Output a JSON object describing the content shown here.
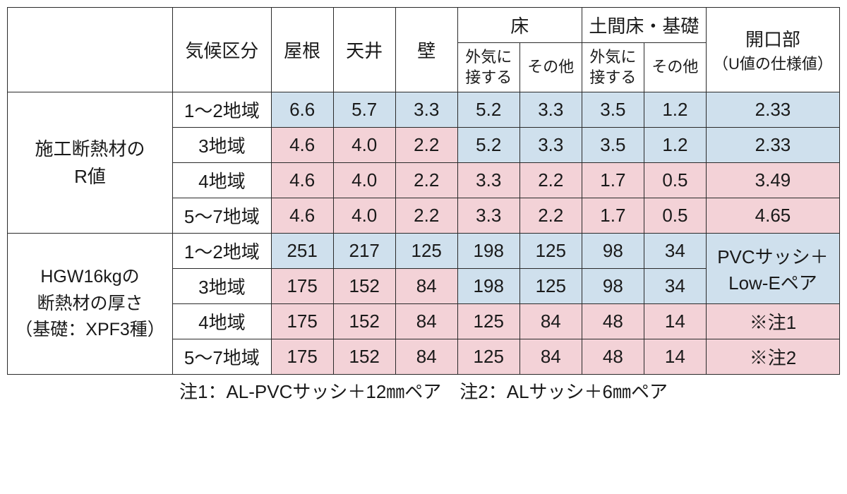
{
  "colors": {
    "blue": "#cfe0ed",
    "pink": "#f3d2d7",
    "border": "#2a2a2a",
    "bg": "#ffffff",
    "text": "#1a1a1a"
  },
  "typography": {
    "base_fontsize": 26,
    "sub_fontsize": 22,
    "family": "Hiragino Sans / Meiryo"
  },
  "header": {
    "climate": "気候区分",
    "roof": "屋根",
    "ceiling": "天井",
    "wall": "壁",
    "floor": "床",
    "floor_outside": "外気に\n接する",
    "floor_other": "その他",
    "doma": "土間床・基礎",
    "doma_outside": "外気に\n接する",
    "doma_other": "その他",
    "opening": "開口部",
    "opening_sub": "（U値の仕様値）"
  },
  "rowgroup1": {
    "label_l1": "施工断熱材の",
    "label_l2": "R値",
    "rows": [
      {
        "climate": "1〜2地域",
        "roof": "6.6",
        "ceiling": "5.7",
        "wall": "3.3",
        "f_out": "5.2",
        "f_oth": "3.3",
        "d_out": "3.5",
        "d_oth": "1.2",
        "open": "2.33",
        "c": {
          "roof": "blue",
          "ceiling": "blue",
          "wall": "blue",
          "f_out": "blue",
          "f_oth": "blue",
          "d_out": "blue",
          "d_oth": "blue",
          "open": "blue"
        }
      },
      {
        "climate": "3地域",
        "roof": "4.6",
        "ceiling": "4.0",
        "wall": "2.2",
        "f_out": "5.2",
        "f_oth": "3.3",
        "d_out": "3.5",
        "d_oth": "1.2",
        "open": "2.33",
        "c": {
          "roof": "pink",
          "ceiling": "pink",
          "wall": "pink",
          "f_out": "blue",
          "f_oth": "blue",
          "d_out": "blue",
          "d_oth": "blue",
          "open": "blue"
        }
      },
      {
        "climate": "4地域",
        "roof": "4.6",
        "ceiling": "4.0",
        "wall": "2.2",
        "f_out": "3.3",
        "f_oth": "2.2",
        "d_out": "1.7",
        "d_oth": "0.5",
        "open": "3.49",
        "c": {
          "roof": "pink",
          "ceiling": "pink",
          "wall": "pink",
          "f_out": "pink",
          "f_oth": "pink",
          "d_out": "pink",
          "d_oth": "pink",
          "open": "pink"
        }
      },
      {
        "climate": "5〜7地域",
        "roof": "4.6",
        "ceiling": "4.0",
        "wall": "2.2",
        "f_out": "3.3",
        "f_oth": "2.2",
        "d_out": "1.7",
        "d_oth": "0.5",
        "open": "4.65",
        "c": {
          "roof": "pink",
          "ceiling": "pink",
          "wall": "pink",
          "f_out": "pink",
          "f_oth": "pink",
          "d_out": "pink",
          "d_oth": "pink",
          "open": "pink"
        }
      }
    ]
  },
  "rowgroup2": {
    "label_l1": "HGW16kgの",
    "label_l2": "断熱材の厚さ",
    "label_l3": "（基礎：XPF3種）",
    "rows": [
      {
        "climate": "1〜2地域",
        "roof": "251",
        "ceiling": "217",
        "wall": "125",
        "f_out": "198",
        "f_oth": "125",
        "d_out": "98",
        "d_oth": "34",
        "c": {
          "roof": "blue",
          "ceiling": "blue",
          "wall": "blue",
          "f_out": "blue",
          "f_oth": "blue",
          "d_out": "blue",
          "d_oth": "blue"
        }
      },
      {
        "climate": "3地域",
        "roof": "175",
        "ceiling": "152",
        "wall": "84",
        "f_out": "198",
        "f_oth": "125",
        "d_out": "98",
        "d_oth": "34",
        "c": {
          "roof": "pink",
          "ceiling": "pink",
          "wall": "pink",
          "f_out": "blue",
          "f_oth": "blue",
          "d_out": "blue",
          "d_oth": "blue"
        }
      },
      {
        "climate": "4地域",
        "roof": "175",
        "ceiling": "152",
        "wall": "84",
        "f_out": "125",
        "f_oth": "84",
        "d_out": "48",
        "d_oth": "14",
        "open": "※注1",
        "c": {
          "roof": "pink",
          "ceiling": "pink",
          "wall": "pink",
          "f_out": "pink",
          "f_oth": "pink",
          "d_out": "pink",
          "d_oth": "pink",
          "open": "pink"
        }
      },
      {
        "climate": "5〜7地域",
        "roof": "175",
        "ceiling": "152",
        "wall": "84",
        "f_out": "125",
        "f_oth": "84",
        "d_out": "48",
        "d_oth": "14",
        "open": "※注2",
        "c": {
          "roof": "pink",
          "ceiling": "pink",
          "wall": "pink",
          "f_out": "pink",
          "f_oth": "pink",
          "d_out": "pink",
          "d_oth": "pink",
          "open": "pink"
        }
      }
    ],
    "opening_merged": {
      "l1": "PVCサッシ＋",
      "l2": "Low-Eペア",
      "color": "blue"
    }
  },
  "footnote": "注1：AL-PVCサッシ＋12㎜ペア　注2：ALサッシ＋6㎜ペア"
}
